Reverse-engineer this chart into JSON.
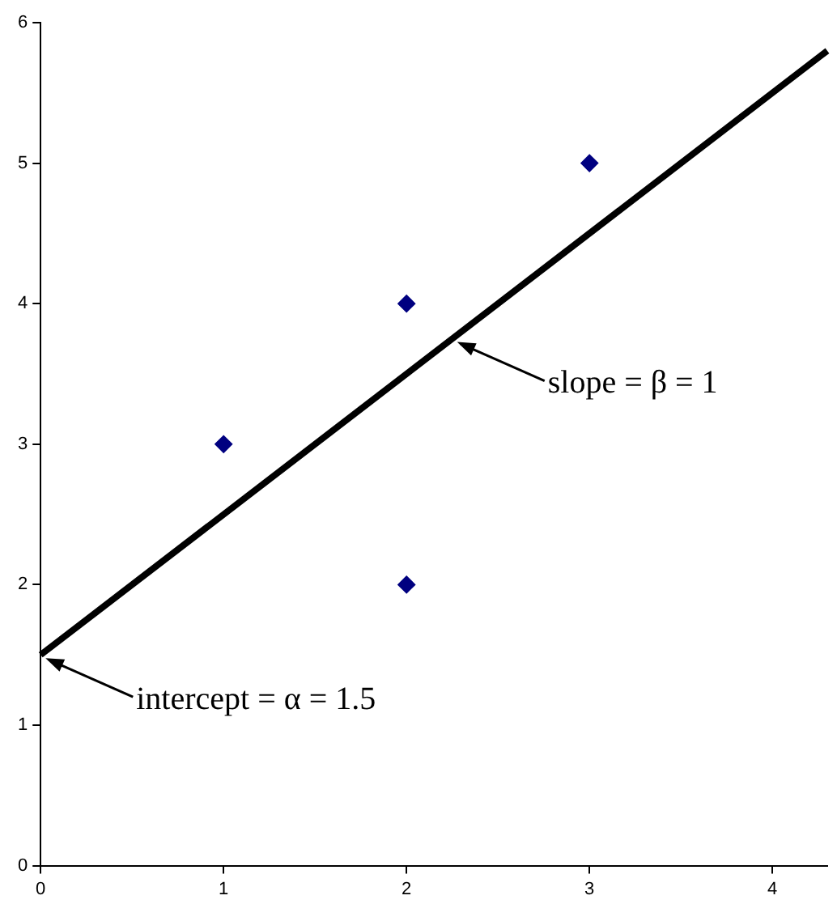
{
  "chart_data": {
    "type": "scatter",
    "xlim": [
      0,
      4.3
    ],
    "ylim": [
      0,
      6
    ],
    "xticks": [
      0,
      1,
      2,
      3,
      4
    ],
    "yticks": [
      0,
      1,
      2,
      3,
      4,
      5,
      6
    ],
    "grid": false,
    "legend": false,
    "marker": "diamond",
    "series": [
      {
        "type": "scatter",
        "color": "#000080",
        "x": [
          1,
          2,
          2,
          3
        ],
        "values": [
          3,
          4,
          2,
          5
        ]
      },
      {
        "type": "line",
        "color": "#000000",
        "x": [
          0,
          4.3
        ],
        "values": [
          1.5,
          5.8
        ],
        "marker": "none"
      }
    ],
    "annotations": [
      {
        "text": "slope = β = 1",
        "x": 2.25,
        "y": 3.75
      },
      {
        "text": "intercept = α = 1.5",
        "x": 0,
        "y": 1.5
      }
    ]
  }
}
